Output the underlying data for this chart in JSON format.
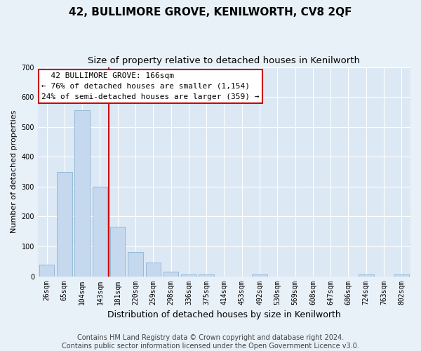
{
  "title": "42, BULLIMORE GROVE, KENILWORTH, CV8 2QF",
  "subtitle": "Size of property relative to detached houses in Kenilworth",
  "xlabel": "Distribution of detached houses by size in Kenilworth",
  "ylabel": "Number of detached properties",
  "footer_line1": "Contains HM Land Registry data © Crown copyright and database right 2024.",
  "footer_line2": "Contains public sector information licensed under the Open Government Licence v3.0.",
  "bins": [
    "26sqm",
    "65sqm",
    "104sqm",
    "143sqm",
    "181sqm",
    "220sqm",
    "259sqm",
    "298sqm",
    "336sqm",
    "375sqm",
    "414sqm",
    "453sqm",
    "492sqm",
    "530sqm",
    "569sqm",
    "608sqm",
    "647sqm",
    "686sqm",
    "724sqm",
    "763sqm",
    "802sqm"
  ],
  "bar_values": [
    40,
    350,
    555,
    300,
    165,
    80,
    45,
    15,
    5,
    5,
    0,
    0,
    5,
    0,
    0,
    0,
    0,
    0,
    5,
    0,
    5
  ],
  "bar_color": "#c5d8ee",
  "bar_edge_color": "#8ab4d4",
  "annotation_line1": "  42 BULLIMORE GROVE: 166sqm  ",
  "annotation_line2": "← 76% of detached houses are smaller (1,154)",
  "annotation_line3": "24% of semi-detached houses are larger (359) →",
  "vline_color": "#cc0000",
  "vline_position": 3.5,
  "ylim": [
    0,
    700
  ],
  "yticks": [
    0,
    100,
    200,
    300,
    400,
    500,
    600,
    700
  ],
  "background_color": "#e8f0f8",
  "plot_bg_color": "#dce8f4",
  "grid_color": "#ffffff",
  "title_fontsize": 11,
  "subtitle_fontsize": 9.5,
  "xlabel_fontsize": 9,
  "ylabel_fontsize": 8,
  "tick_fontsize": 7,
  "annotation_fontsize": 8,
  "footer_fontsize": 7
}
